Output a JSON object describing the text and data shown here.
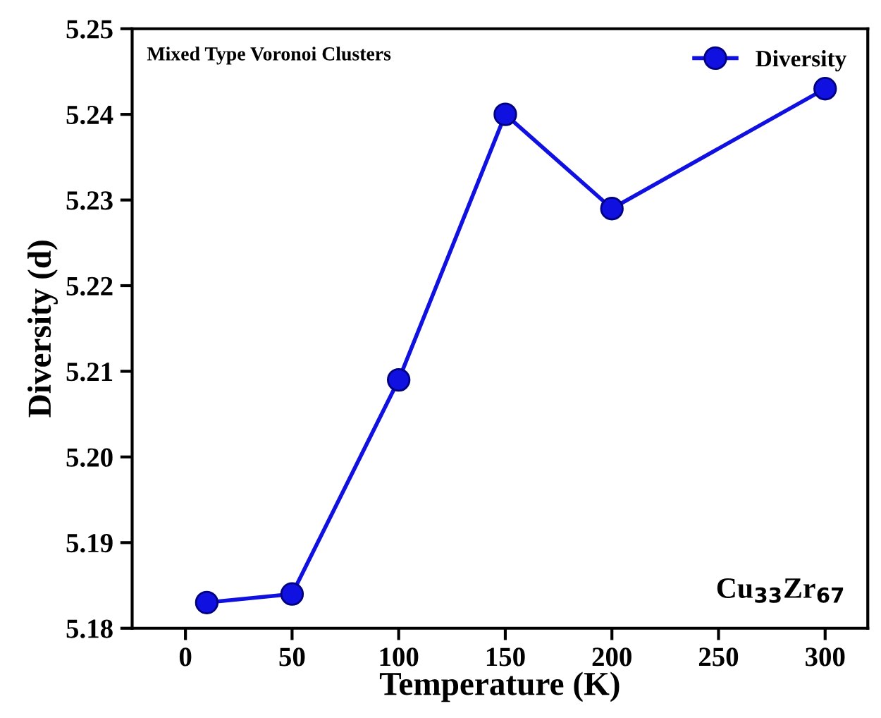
{
  "chart_data": {
    "type": "line",
    "xlabel": "Temperature (K)",
    "ylabel": "Diversity (d)",
    "x": [
      10,
      50,
      100,
      150,
      200,
      300
    ],
    "series": [
      {
        "name": "Diversity",
        "color": "#1010e0",
        "values": [
          5.183,
          5.184,
          5.209,
          5.24,
          5.229,
          5.243
        ]
      }
    ],
    "xlim": [
      -25,
      320
    ],
    "xticks": [
      0,
      50,
      100,
      150,
      200,
      250,
      300
    ],
    "ylim": [
      5.18,
      5.25
    ],
    "yticks": [
      5.18,
      5.19,
      {
        "value": 5.2,
        "label": "5.20"
      },
      5.21,
      5.22,
      5.23,
      5.24,
      5.25
    ],
    "marker": "circle",
    "line_style": "solid",
    "legend": "top right",
    "grid": false,
    "annotations": [
      "Mixed Type Voronoi Clusters",
      "Cu$_{33}$Zr$_{67}$"
    ]
  }
}
